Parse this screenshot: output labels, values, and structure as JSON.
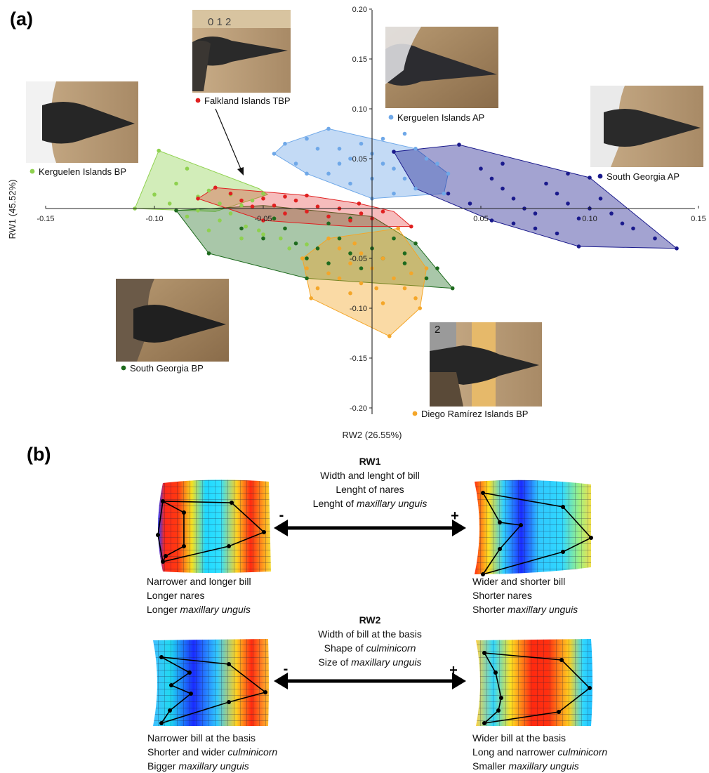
{
  "panel_a_label": "(a)",
  "panel_b_label": "(b)",
  "chart_data": {
    "type": "scatter",
    "xlabel": "RW2 (26.55%)",
    "ylabel": "RW1 (45.52%)",
    "xlim": [
      -0.15,
      0.15
    ],
    "ylim": [
      -0.2,
      0.2
    ],
    "x_ticks": [
      "-0.15",
      "-0.10",
      "-0.05",
      "0.05",
      "0.10",
      "0.15"
    ],
    "x_tick_values": [
      -0.15,
      -0.1,
      -0.05,
      0.05,
      0.1,
      0.15
    ],
    "y_ticks": [
      "0.20",
      "0.15",
      "0.10",
      "0.05",
      "-0.05",
      "-0.10",
      "-0.15",
      "-0.20"
    ],
    "y_tick_values": [
      0.2,
      0.15,
      0.1,
      0.05,
      -0.05,
      -0.1,
      -0.15,
      -0.2
    ],
    "grid": false,
    "series": [
      {
        "name": "Kerguelen Islands BP",
        "color": "#8fd14f",
        "fill": "rgba(143,209,79,0.40)",
        "hull": [
          [
            -0.098,
            0.058
          ],
          [
            -0.052,
            0.02
          ],
          [
            -0.048,
            0.014
          ],
          [
            -0.072,
            -0.003
          ],
          [
            -0.109,
            0.0
          ]
        ],
        "points": [
          [
            -0.098,
            0.058
          ],
          [
            -0.085,
            0.04
          ],
          [
            -0.09,
            0.025
          ],
          [
            -0.075,
            0.018
          ],
          [
            -0.07,
            0.005
          ],
          [
            -0.08,
            0.012
          ],
          [
            -0.1,
            0.014
          ],
          [
            -0.093,
            0.005
          ],
          [
            -0.08,
            -0.002
          ],
          [
            -0.065,
            -0.005
          ],
          [
            -0.06,
            0.003
          ],
          [
            -0.055,
            0.008
          ],
          [
            -0.065,
            0.014
          ],
          [
            -0.07,
            -0.012
          ],
          [
            -0.058,
            -0.018
          ],
          [
            -0.052,
            -0.022
          ],
          [
            -0.045,
            -0.01
          ],
          [
            -0.05,
            -0.026
          ],
          [
            -0.042,
            -0.03
          ],
          [
            -0.038,
            -0.04
          ],
          [
            -0.03,
            -0.036
          ],
          [
            -0.032,
            -0.05
          ],
          [
            -0.05,
            0.015
          ],
          [
            -0.06,
            -0.03
          ],
          [
            -0.075,
            -0.022
          ],
          [
            -0.109,
            0.0
          ],
          [
            -0.085,
            -0.008
          ]
        ]
      },
      {
        "name": "South Georgia BP",
        "color": "#1e6b1e",
        "fill": "rgba(30,107,30,0.38)",
        "hull": [
          [
            -0.09,
            -0.002
          ],
          [
            -0.05,
            0.003
          ],
          [
            0.0,
            -0.008
          ],
          [
            0.02,
            -0.035
          ],
          [
            0.037,
            -0.08
          ],
          [
            -0.03,
            -0.07
          ],
          [
            -0.075,
            -0.045
          ]
        ],
        "points": [
          [
            -0.09,
            -0.002
          ],
          [
            -0.075,
            -0.045
          ],
          [
            -0.06,
            -0.02
          ],
          [
            -0.05,
            -0.03
          ],
          [
            -0.04,
            -0.02
          ],
          [
            -0.035,
            -0.035
          ],
          [
            -0.03,
            -0.05
          ],
          [
            -0.025,
            -0.04
          ],
          [
            -0.02,
            -0.055
          ],
          [
            -0.015,
            -0.03
          ],
          [
            -0.01,
            -0.045
          ],
          [
            -0.005,
            -0.06
          ],
          [
            0.0,
            -0.04
          ],
          [
            0.005,
            -0.05
          ],
          [
            0.01,
            -0.03
          ],
          [
            0.015,
            -0.055
          ],
          [
            0.02,
            -0.035
          ],
          [
            0.015,
            -0.045
          ],
          [
            -0.03,
            -0.07
          ],
          [
            -0.045,
            -0.01
          ],
          [
            -0.02,
            -0.015
          ],
          [
            -0.01,
            -0.01
          ],
          [
            0.037,
            -0.08
          ],
          [
            0.03,
            -0.06
          ],
          [
            0.025,
            -0.07
          ]
        ]
      },
      {
        "name": "Diego Ramírez Islands BP",
        "color": "#f4a629",
        "fill": "rgba(244,166,41,0.42)",
        "hull": [
          [
            -0.02,
            -0.03
          ],
          [
            0.012,
            -0.02
          ],
          [
            0.025,
            -0.06
          ],
          [
            0.022,
            -0.1
          ],
          [
            0.008,
            -0.128
          ],
          [
            -0.028,
            -0.09
          ],
          [
            -0.032,
            -0.05
          ]
        ],
        "points": [
          [
            -0.02,
            -0.03
          ],
          [
            -0.015,
            -0.04
          ],
          [
            -0.01,
            -0.055
          ],
          [
            -0.005,
            -0.045
          ],
          [
            0.0,
            -0.06
          ],
          [
            0.005,
            -0.05
          ],
          [
            0.01,
            -0.07
          ],
          [
            0.015,
            -0.08
          ],
          [
            0.02,
            -0.09
          ],
          [
            0.005,
            -0.095
          ],
          [
            0.002,
            -0.08
          ],
          [
            -0.005,
            -0.075
          ],
          [
            -0.01,
            -0.085
          ],
          [
            -0.015,
            -0.07
          ],
          [
            -0.02,
            -0.065
          ],
          [
            -0.025,
            -0.08
          ],
          [
            -0.028,
            -0.09
          ],
          [
            -0.03,
            -0.06
          ],
          [
            -0.032,
            -0.05
          ],
          [
            0.012,
            -0.02
          ],
          [
            0.025,
            -0.06
          ],
          [
            0.022,
            -0.1
          ],
          [
            0.008,
            -0.128
          ],
          [
            0.018,
            -0.065
          ],
          [
            -0.008,
            -0.035
          ]
        ]
      },
      {
        "name": "Falkland Islands TBP",
        "color": "#e02020",
        "fill": "rgba(224,32,32,0.30)",
        "hull": [
          [
            -0.072,
            0.021
          ],
          [
            -0.03,
            0.013
          ],
          [
            -0.006,
            0.005
          ],
          [
            0.01,
            -0.003
          ],
          [
            0.018,
            -0.018
          ],
          [
            -0.01,
            -0.018
          ],
          [
            -0.05,
            -0.012
          ],
          [
            -0.08,
            0.01
          ]
        ],
        "points": [
          [
            -0.072,
            0.021
          ],
          [
            -0.065,
            0.015
          ],
          [
            -0.06,
            0.008
          ],
          [
            -0.055,
            0.002
          ],
          [
            -0.05,
            0.01
          ],
          [
            -0.045,
            0.003
          ],
          [
            -0.04,
            -0.005
          ],
          [
            -0.035,
            0.008
          ],
          [
            -0.03,
            -0.003
          ],
          [
            -0.025,
            0.002
          ],
          [
            -0.02,
            -0.008
          ],
          [
            -0.015,
            0.0
          ],
          [
            -0.01,
            -0.012
          ],
          [
            -0.005,
            -0.005
          ],
          [
            0.0,
            -0.01
          ],
          [
            0.005,
            -0.003
          ],
          [
            0.018,
            -0.018
          ],
          [
            -0.05,
            -0.012
          ],
          [
            -0.08,
            0.01
          ],
          [
            -0.03,
            0.013
          ],
          [
            -0.006,
            0.005
          ],
          [
            -0.04,
            0.012
          ]
        ]
      },
      {
        "name": "Kerguelen Islands AP",
        "color": "#6fa8e8",
        "fill": "rgba(111,168,232,0.42)",
        "hull": [
          [
            -0.04,
            0.065
          ],
          [
            -0.02,
            0.08
          ],
          [
            0.02,
            0.06
          ],
          [
            0.035,
            0.035
          ],
          [
            0.033,
            0.015
          ],
          [
            0.0,
            0.01
          ],
          [
            -0.03,
            0.035
          ],
          [
            -0.045,
            0.055
          ]
        ],
        "points": [
          [
            -0.04,
            0.065
          ],
          [
            -0.03,
            0.07
          ],
          [
            -0.02,
            0.08
          ],
          [
            -0.015,
            0.06
          ],
          [
            -0.01,
            0.05
          ],
          [
            -0.005,
            0.065
          ],
          [
            0.0,
            0.055
          ],
          [
            0.005,
            0.045
          ],
          [
            0.01,
            0.04
          ],
          [
            0.015,
            0.03
          ],
          [
            0.02,
            0.06
          ],
          [
            0.025,
            0.05
          ],
          [
            0.03,
            0.045
          ],
          [
            0.033,
            0.015
          ],
          [
            0.035,
            0.035
          ],
          [
            0.02,
            0.02
          ],
          [
            0.01,
            0.015
          ],
          [
            0.0,
            0.01
          ],
          [
            -0.01,
            0.025
          ],
          [
            -0.02,
            0.035
          ],
          [
            -0.03,
            0.035
          ],
          [
            -0.035,
            0.045
          ],
          [
            -0.045,
            0.055
          ],
          [
            -0.025,
            0.06
          ],
          [
            0.015,
            0.075
          ],
          [
            0.005,
            0.07
          ],
          [
            -0.015,
            0.045
          ],
          [
            0.0,
            0.03
          ]
        ]
      },
      {
        "name": "South Georgia AP",
        "color": "#1a1a8c",
        "fill": "rgba(26,26,140,0.40)",
        "hull": [
          [
            0.01,
            0.057
          ],
          [
            0.04,
            0.064
          ],
          [
            0.1,
            0.031
          ],
          [
            0.14,
            -0.04
          ],
          [
            0.095,
            -0.038
          ],
          [
            0.055,
            -0.012
          ],
          [
            0.02,
            0.02
          ]
        ],
        "points": [
          [
            0.01,
            0.057
          ],
          [
            0.04,
            0.064
          ],
          [
            0.05,
            0.04
          ],
          [
            0.055,
            0.03
          ],
          [
            0.06,
            0.02
          ],
          [
            0.065,
            0.01
          ],
          [
            0.07,
            0.0
          ],
          [
            0.075,
            -0.005
          ],
          [
            0.08,
            0.025
          ],
          [
            0.085,
            0.015
          ],
          [
            0.09,
            0.005
          ],
          [
            0.095,
            -0.01
          ],
          [
            0.1,
            0.031
          ],
          [
            0.105,
            0.01
          ],
          [
            0.11,
            -0.005
          ],
          [
            0.115,
            -0.015
          ],
          [
            0.12,
            -0.02
          ],
          [
            0.13,
            -0.03
          ],
          [
            0.14,
            -0.04
          ],
          [
            0.095,
            -0.038
          ],
          [
            0.085,
            -0.025
          ],
          [
            0.075,
            -0.02
          ],
          [
            0.065,
            -0.015
          ],
          [
            0.055,
            -0.012
          ],
          [
            0.045,
            0.005
          ],
          [
            0.035,
            0.015
          ],
          [
            0.06,
            0.045
          ],
          [
            0.09,
            0.035
          ],
          [
            0.1,
            0.0
          ]
        ]
      }
    ]
  },
  "photos": [
    {
      "id": "falkland",
      "label": "Falkland Islands TBP",
      "ruler_text": "0   1   2"
    },
    {
      "id": "kerguelen_ap",
      "label": "Kerguelen Islands AP"
    },
    {
      "id": "kerguelen_bp",
      "label": "Kerguelen Islands BP"
    },
    {
      "id": "south_georgia_ap",
      "label": "South Georgia AP"
    },
    {
      "id": "south_georgia_bp",
      "label": "South Georgia BP"
    },
    {
      "id": "diego",
      "label": "Diego Ramírez Islands BP",
      "ruler_text": "2"
    }
  ],
  "rw1": {
    "title": "RW1",
    "lines": [
      "Width and lenght of bill",
      "Lenght of nares"
    ],
    "line3_prefix": "Lenght of ",
    "line3_italic": "maxillary unguis",
    "minus": "-",
    "plus": "+",
    "left_desc": [
      "Narrower and longer bill",
      "Longer nares"
    ],
    "left_desc3_prefix": "Longer ",
    "left_desc3_italic": "maxillary unguis",
    "right_desc": [
      "Wider and shorter bill",
      "Shorter nares"
    ],
    "right_desc3_prefix": "Shorter ",
    "right_desc3_italic": "maxillary unguis"
  },
  "rw2": {
    "title": "RW2",
    "line1": "Width of bill at the basis",
    "line2_prefix": "Shape of ",
    "line2_italic": "culminicorn",
    "line3_prefix": "Size of ",
    "line3_italic": "maxillary unguis",
    "minus": "-",
    "plus": "+",
    "left_desc1": "Narrower bill at the basis",
    "left_desc2_prefix": "Shorter and wider ",
    "left_desc2_italic": "culminicorn",
    "left_desc3_prefix": "Bigger ",
    "left_desc3_italic": "maxillary unguis",
    "right_desc1": "Wider bill at the basis",
    "right_desc2_prefix": "Long and narrower ",
    "right_desc2_italic": "culminicorn",
    "right_desc3_prefix": "Smaller ",
    "right_desc3_italic": "maxillary unguis"
  }
}
